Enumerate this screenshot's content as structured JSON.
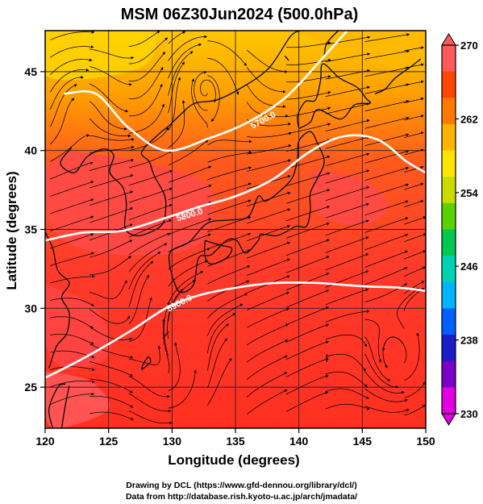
{
  "chart_data": {
    "type": "heatmap",
    "title": "MSM 06Z30Jun2024 (500.0hPa)",
    "xlabel": "Longitude (degrees)",
    "ylabel": "Latitude  (degrees)",
    "xlim": [
      120,
      150
    ],
    "ylim": [
      22.4,
      47.6
    ],
    "x_ticks": [
      120,
      125,
      130,
      135,
      140,
      145,
      150
    ],
    "y_ticks": [
      25,
      30,
      35,
      40,
      45
    ],
    "grid": true,
    "colorbar": {
      "min": 230,
      "max": 270,
      "tick_values": [
        230,
        238,
        246,
        254,
        262,
        270
      ],
      "colors": [
        "#e000e0",
        "#7a00c8",
        "#1c1cc8",
        "#0060ff",
        "#00b4ff",
        "#00d2b4",
        "#00c850",
        "#5ad200",
        "#c8dc00",
        "#ffe600",
        "#ffb400",
        "#ff7800",
        "#ff4600",
        "#ff5a5a"
      ]
    },
    "contours": [
      {
        "label": "5700.0",
        "points": [
          [
            121.5,
            43.6
          ],
          [
            124,
            43.6
          ],
          [
            126.5,
            41.5
          ],
          [
            129.5,
            40
          ],
          [
            133,
            40.8
          ],
          [
            136,
            41.8
          ],
          [
            139,
            43.4
          ],
          [
            141.8,
            45.8
          ],
          [
            143.8,
            47.6
          ]
        ]
      },
      {
        "label": "5800.0",
        "points": [
          [
            120,
            34.3
          ],
          [
            123,
            34.8
          ],
          [
            126,
            34.9
          ],
          [
            129,
            35.6
          ],
          [
            132,
            36.4
          ],
          [
            135,
            37.1
          ],
          [
            138,
            38.2
          ],
          [
            140.8,
            39.9
          ],
          [
            143.5,
            40.9
          ],
          [
            146.2,
            40.7
          ],
          [
            148.5,
            39.3
          ],
          [
            150,
            38.6
          ]
        ]
      },
      {
        "label": "5900.0",
        "points": [
          [
            120,
            25.6
          ],
          [
            122,
            26.4
          ],
          [
            124.5,
            27.5
          ],
          [
            127,
            28.7
          ],
          [
            129.5,
            30
          ],
          [
            132,
            30.8
          ],
          [
            135,
            31.3
          ],
          [
            138,
            31.6
          ],
          [
            141.5,
            31.6
          ],
          [
            145,
            31.4
          ],
          [
            148,
            31.3
          ],
          [
            150,
            31.1
          ]
        ]
      }
    ],
    "contour_labels": [
      {
        "text": "5700.0",
        "x": 137.2,
        "y": 41.9
      },
      {
        "text": "5800.0",
        "x": 131.4,
        "y": 35.9
      },
      {
        "text": "5900.0",
        "x": 130.6,
        "y": 30.3
      }
    ]
  },
  "credits": {
    "line1": "Drawing by DCL (https://www.gfd-dennou.org/library/dcl/)",
    "line2": "Data from http://database.rish.kyoto-u.ac.jp/arch/jmadata/"
  }
}
